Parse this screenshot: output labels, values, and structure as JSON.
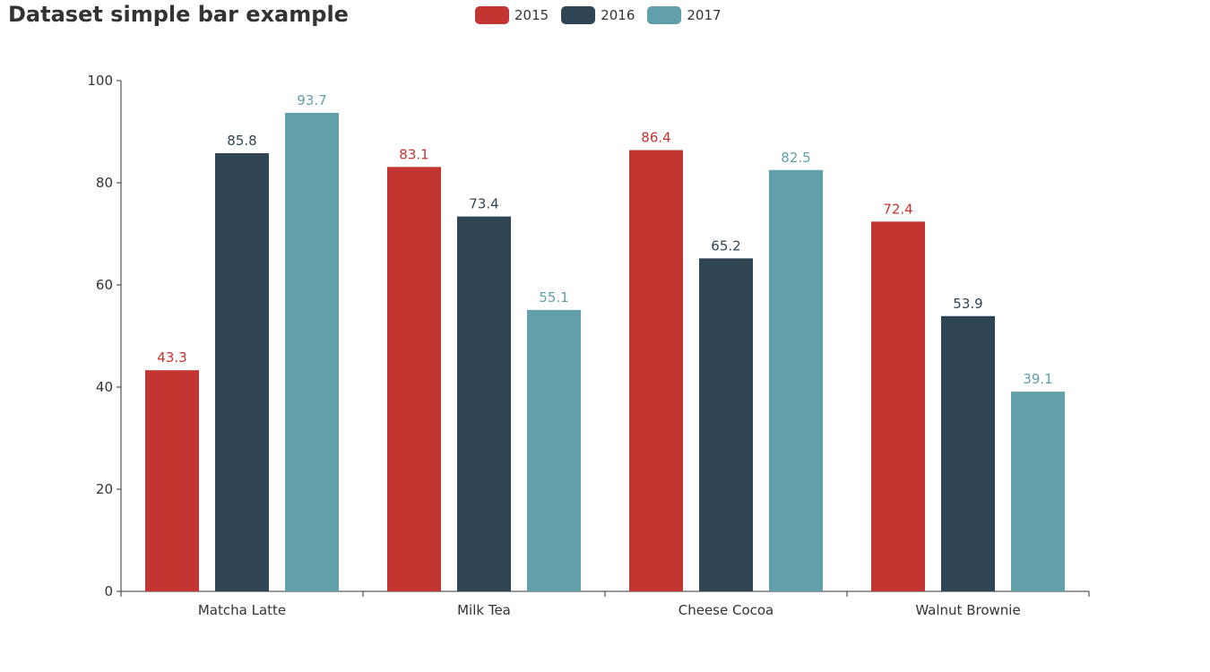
{
  "chart_data": {
    "type": "bar",
    "title": "Dataset simple bar example",
    "categories": [
      "Matcha Latte",
      "Milk Tea",
      "Cheese Cocoa",
      "Walnut Brownie"
    ],
    "series": [
      {
        "name": "2015",
        "color": "#c23531",
        "values": [
          43.3,
          83.1,
          86.4,
          72.4
        ]
      },
      {
        "name": "2016",
        "color": "#2f4554",
        "values": [
          85.8,
          73.4,
          65.2,
          53.9
        ]
      },
      {
        "name": "2017",
        "color": "#61a0a8",
        "values": [
          93.7,
          55.1,
          82.5,
          39.1
        ]
      }
    ],
    "ylim": [
      0,
      100
    ],
    "yticks": [
      0,
      20,
      40,
      60,
      80,
      100
    ],
    "xlabel": "",
    "ylabel": "",
    "grid": false,
    "legend_position": "top-center",
    "data_labels": true
  }
}
